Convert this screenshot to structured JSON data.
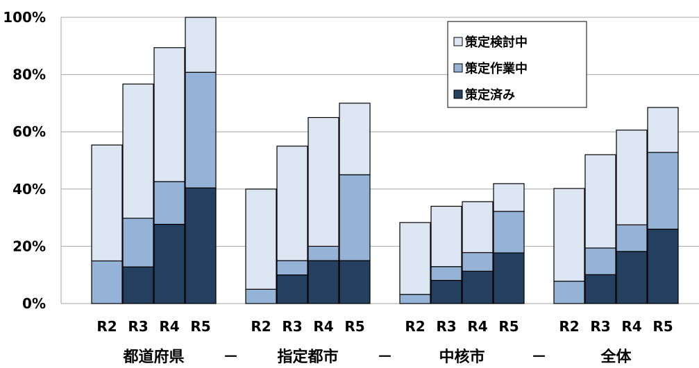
{
  "chart_data": {
    "type": "bar",
    "stacked": true,
    "ylim": [
      0,
      100
    ],
    "yticks": [
      0,
      20,
      40,
      60,
      80,
      100
    ],
    "ytick_labels": [
      "0%",
      "20%",
      "40%",
      "60%",
      "80%",
      "100%"
    ],
    "grid": "horizontal",
    "legend_position": "top-right",
    "groups": [
      {
        "label": "都道府県",
        "categories": [
          "R2",
          "R3",
          "R4",
          "R5"
        ]
      },
      {
        "label": "指定都市",
        "categories": [
          "R2",
          "R3",
          "R4",
          "R5"
        ]
      },
      {
        "label": "中核市",
        "categories": [
          "R2",
          "R3",
          "R4",
          "R5"
        ]
      },
      {
        "label": "全体",
        "categories": [
          "R2",
          "R3",
          "R4",
          "R5"
        ]
      }
    ],
    "group_separator": "－",
    "series": [
      {
        "name": "策定済み",
        "color": "#243f60",
        "values": [
          0,
          12.8,
          27.7,
          40.4,
          0,
          10,
          15,
          15,
          0,
          8.1,
          11.3,
          17.7,
          0,
          10.1,
          18.2,
          26
        ]
      },
      {
        "name": "策定作業中",
        "color": "#95b3d7",
        "values": [
          14.9,
          17,
          14.9,
          40.4,
          5,
          5,
          5,
          30,
          3.2,
          4.8,
          6.5,
          14.5,
          7.8,
          9.3,
          9.3,
          26.8
        ]
      },
      {
        "name": "策定検討中",
        "color": "#dce6f2",
        "values": [
          40.5,
          46.9,
          46.8,
          19.2,
          35,
          40,
          45,
          25,
          25.1,
          21.1,
          17.8,
          9.7,
          32.4,
          32.6,
          33.1,
          15.7
        ]
      }
    ],
    "legend_order": [
      "策定検討中",
      "策定作業中",
      "策定済み"
    ]
  }
}
